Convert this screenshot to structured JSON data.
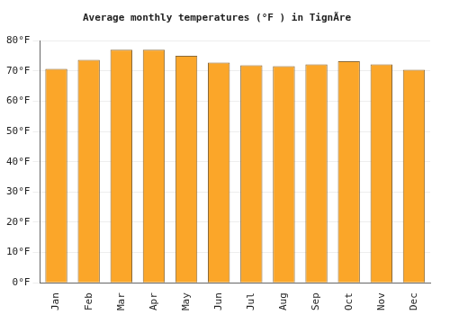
{
  "chart_data": {
    "type": "bar",
    "title": "Average monthly temperatures (°F ) in TignÃre",
    "categories": [
      "Jan",
      "Feb",
      "Mar",
      "Apr",
      "May",
      "Jun",
      "Jul",
      "Aug",
      "Sep",
      "Oct",
      "Nov",
      "Dec"
    ],
    "values": [
      70.7,
      73.7,
      77.0,
      77.0,
      75.0,
      72.8,
      71.9,
      71.6,
      72.2,
      73.2,
      72.2,
      70.4
    ],
    "color": "#fba629",
    "ylim": [
      0,
      80
    ],
    "yticks": [
      {
        "value": 0,
        "label": "0°F"
      },
      {
        "value": 10,
        "label": "10°F"
      },
      {
        "value": 20,
        "label": "20°F"
      },
      {
        "value": 30,
        "label": "30°F"
      },
      {
        "value": 40,
        "label": "40°F"
      },
      {
        "value": 50,
        "label": "50°F"
      },
      {
        "value": 60,
        "label": "60°F"
      },
      {
        "value": 70,
        "label": "70°F"
      },
      {
        "value": 80,
        "label": "80°F"
      }
    ],
    "grid": true
  }
}
